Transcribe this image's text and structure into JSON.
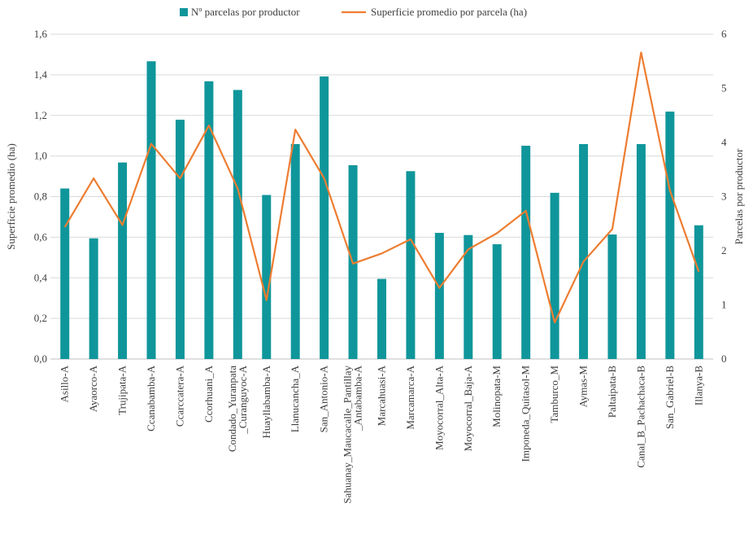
{
  "chart_data": {
    "type": "bar",
    "categories": [
      [
        "Asillo-A"
      ],
      [
        "Ayaorco-A"
      ],
      [
        "Trujipata-A"
      ],
      [
        "Ccanabamba-A"
      ],
      [
        "Ccarccatera-A"
      ],
      [
        "Ccorhuani_A"
      ],
      [
        "Condado_Yuranpata",
        "_Curanguyoc-A"
      ],
      [
        "Huayllabamba-A"
      ],
      [
        "Llanucancha_A"
      ],
      [
        "San_Antonio-A"
      ],
      [
        "Sahuanay_Maucacalle_Pantillay",
        "_Antabamba-A"
      ],
      [
        "Marcahuasi-A"
      ],
      [
        "Marcamarca-A"
      ],
      [
        "Moyocorral_Alta-A"
      ],
      [
        "Moyocorral_Baja-A"
      ],
      [
        "Molinopata-M"
      ],
      [
        "Imponeda_Quitasol-M"
      ],
      [
        "Tamburco_M"
      ],
      [
        "Aymas-M"
      ],
      [
        "Paltaipata-B"
      ],
      [
        "Canal_B_Pachachaca-B"
      ],
      [
        "San_Gabriel-B"
      ],
      [
        "Illanya-B"
      ]
    ],
    "series": [
      {
        "name": "Nº parcelas por productor",
        "type": "bar",
        "axis": "right",
        "color": "#0f969b",
        "values": [
          3.15,
          2.23,
          3.63,
          5.5,
          4.42,
          5.13,
          4.97,
          3.03,
          3.97,
          5.22,
          3.58,
          1.48,
          3.47,
          2.33,
          2.29,
          2.12,
          3.94,
          3.07,
          3.97,
          2.3,
          3.97,
          4.57,
          2.47
        ]
      },
      {
        "name": "Superficie promedio por parcela (ha)",
        "type": "line",
        "axis": "left",
        "color": "#ed7d31",
        "values": [
          0.65,
          0.89,
          0.66,
          1.06,
          0.89,
          1.15,
          0.84,
          0.29,
          1.13,
          0.89,
          0.47,
          0.52,
          0.59,
          0.35,
          0.54,
          0.62,
          0.73,
          0.18,
          0.48,
          0.64,
          1.51,
          0.83,
          0.43
        ]
      }
    ],
    "left_axis": {
      "title": "Superficie promedio (ha)",
      "ylim": [
        0,
        1.6
      ],
      "ticks": [
        "0,0",
        "0,2",
        "0,4",
        "0,6",
        "0,8",
        "1,0",
        "1,2",
        "1,4",
        "1,6"
      ]
    },
    "right_axis": {
      "title": "Parcelas por productor",
      "ylim": [
        0,
        6
      ],
      "ticks": [
        "0",
        "1",
        "2",
        "3",
        "4",
        "5",
        "6"
      ]
    },
    "grid": true,
    "legend": "top-center"
  }
}
